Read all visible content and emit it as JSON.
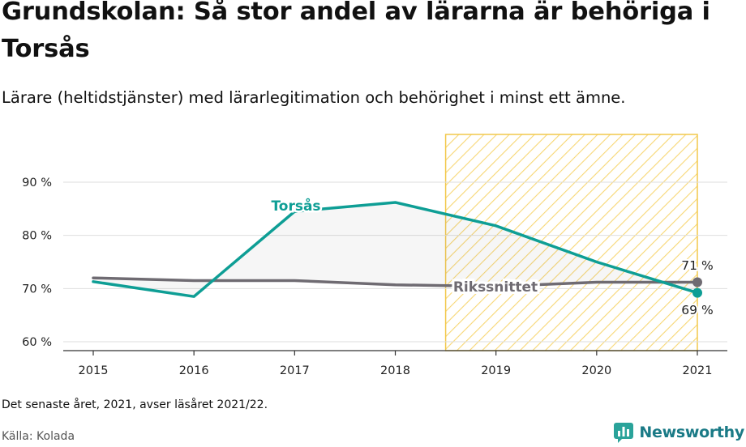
{
  "header": {
    "title": "Grundskolan: Så stor andel av lärarna är behöriga i Torsås",
    "subtitle": "Lärare (heltidstjänster) med lärarlegitimation och behörighet i minst ett ämne."
  },
  "footer": {
    "note": "Det senaste året, 2021, avser läsåret 2021/22.",
    "source": "Källa: Kolada",
    "brand": "Newsworthy"
  },
  "colors": {
    "torsas": "#0e9e95",
    "riket": "#6f6b72",
    "highlight_stroke": "#f2c84b",
    "highlight_hatch": "#f7d774",
    "brand": "#1a7a86"
  },
  "icons": [
    "newsworthy-logo-icon"
  ],
  "chart_data": {
    "type": "line",
    "categories": [
      "2015",
      "2016",
      "2017",
      "2018",
      "2019",
      "2020",
      "2021"
    ],
    "y_ticks": [
      60,
      70,
      80,
      90
    ],
    "y_tick_labels": [
      "60 %",
      "70 %",
      "80 %",
      "90 %"
    ],
    "ylim": [
      58,
      98
    ],
    "grid": true,
    "highlight_range": [
      "2019",
      "2021"
    ],
    "series": [
      {
        "name": "Torsås",
        "values": [
          71.3,
          68.5,
          84.5,
          86.2,
          81.8,
          75.0,
          69.2
        ],
        "end_label": "69 %"
      },
      {
        "name": "Rikssnittet",
        "values": [
          72.0,
          71.5,
          71.5,
          70.7,
          70.4,
          71.2,
          71.2
        ],
        "end_label": "71 %"
      }
    ]
  }
}
